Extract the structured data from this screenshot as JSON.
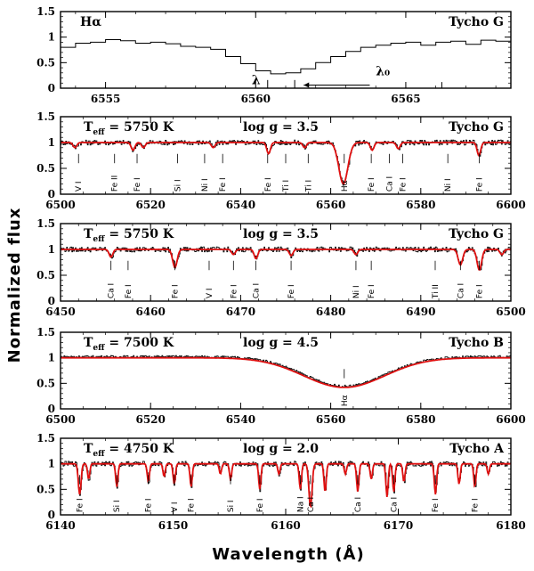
{
  "chart_data": {
    "type": "line",
    "ylabel": "Normalized flux",
    "xlabel": "Wavelength (Å)",
    "panels": [
      {
        "id": "p1",
        "xlim": [
          6553.5,
          6568.5
        ],
        "ylim": [
          0,
          1.5
        ],
        "xticks": [
          6555,
          6560,
          6565
        ],
        "yticks": [
          0,
          0.5,
          1,
          1.5
        ],
        "ytick_labels": [
          "0",
          "0.5",
          "1",
          "1.5"
        ],
        "texts": {
          "left": "Hα",
          "right": "Tycho G"
        },
        "step": true,
        "observed": {
          "x": [
            6553.5,
            6554.0,
            6554.5,
            6555.0,
            6555.5,
            6556.0,
            6556.5,
            6557.0,
            6557.5,
            6558.0,
            6558.5,
            6559.0,
            6559.5,
            6560.0,
            6560.5,
            6561.0,
            6561.5,
            6562.0,
            6562.5,
            6563.0,
            6563.5,
            6564.0,
            6564.5,
            6565.0,
            6565.5,
            6566.0,
            6566.5,
            6567.0,
            6567.5,
            6568.0,
            6568.5
          ],
          "y": [
            0.8,
            0.88,
            0.9,
            0.95,
            0.93,
            0.88,
            0.9,
            0.87,
            0.82,
            0.8,
            0.76,
            0.62,
            0.48,
            0.34,
            0.28,
            0.3,
            0.38,
            0.5,
            0.62,
            0.72,
            0.8,
            0.84,
            0.88,
            0.9,
            0.84,
            0.9,
            0.92,
            0.86,
            0.94,
            0.92,
            0.92
          ]
        },
        "annotations": {
          "lambda": "λ",
          "lambda0": "λ₀"
        }
      },
      {
        "id": "p2",
        "xlim": [
          6500,
          6600
        ],
        "ylim": [
          0,
          1.5
        ],
        "xticks": [
          6500,
          6520,
          6540,
          6560,
          6580,
          6600
        ],
        "yticks": [
          0,
          0.5,
          1,
          1.5
        ],
        "ytick_labels": [
          "0",
          "0.5",
          "1",
          "1.5"
        ],
        "texts": {
          "teff": "T",
          "teff_sub": "eff",
          "teff_val": " = 5750 K",
          "logg": "log g = 3.5",
          "right": "Tycho G"
        },
        "lines": [
          {
            "x": 6504,
            "label": "V I"
          },
          {
            "x": 6512,
            "label": "Fe II"
          },
          {
            "x": 6517,
            "label": "Fe I"
          },
          {
            "x": 6526,
            "label": "Si I"
          },
          {
            "x": 6532,
            "label": "Ni I"
          },
          {
            "x": 6536,
            "label": "Fe I"
          },
          {
            "x": 6546,
            "label": "Fe I"
          },
          {
            "x": 6550,
            "label": "Ti I"
          },
          {
            "x": 6555,
            "label": "Ti I"
          },
          {
            "x": 6563,
            "label": "Hα"
          },
          {
            "x": 6569,
            "label": "Fe I"
          },
          {
            "x": 6573,
            "label": "Ca I"
          },
          {
            "x": 6576,
            "label": "Fe I"
          },
          {
            "x": 6586,
            "label": "Ni I"
          },
          {
            "x": 6593,
            "label": "Fe I"
          }
        ],
        "continuum": 1.0,
        "model_lines": [
          {
            "x": 6503.2,
            "depth": 0.1,
            "width": 0.4
          },
          {
            "x": 6516.1,
            "depth": 0.15,
            "width": 0.4
          },
          {
            "x": 6518.4,
            "depth": 0.1,
            "width": 0.4
          },
          {
            "x": 6533.9,
            "depth": 0.1,
            "width": 0.4
          },
          {
            "x": 6546.2,
            "depth": 0.22,
            "width": 0.4
          },
          {
            "x": 6554.2,
            "depth": 0.1,
            "width": 0.4
          },
          {
            "x": 6562.8,
            "depth": 0.8,
            "width": 1.0
          },
          {
            "x": 6569.2,
            "depth": 0.15,
            "width": 0.4
          },
          {
            "x": 6575.0,
            "depth": 0.12,
            "width": 0.4
          },
          {
            "x": 6592.9,
            "depth": 0.25,
            "width": 0.4
          }
        ]
      },
      {
        "id": "p3",
        "xlim": [
          6450,
          6500
        ],
        "ylim": [
          0,
          1.5
        ],
        "xticks": [
          6450,
          6460,
          6470,
          6480,
          6490,
          6500
        ],
        "yticks": [
          0,
          0.5,
          1,
          1.5
        ],
        "ytick_labels": [
          "0",
          "0.5",
          "1",
          "1.5"
        ],
        "texts": {
          "teff": "T",
          "teff_sub": "eff",
          "teff_val": " = 5750 K",
          "logg": "log g = 3.5",
          "right": "Tycho G"
        },
        "lines": [
          {
            "x": 6455.6,
            "label": "Ca I"
          },
          {
            "x": 6457.5,
            "label": "Fe I"
          },
          {
            "x": 6462.7,
            "label": "Fe I"
          },
          {
            "x": 6466.5,
            "label": "V I"
          },
          {
            "x": 6469.2,
            "label": "Fe I"
          },
          {
            "x": 6471.7,
            "label": "Ca I"
          },
          {
            "x": 6475.6,
            "label": "Fe I"
          },
          {
            "x": 6482.8,
            "label": "Ni I"
          },
          {
            "x": 6484.5,
            "label": "Fe I"
          },
          {
            "x": 6491.6,
            "label": "Ti II"
          },
          {
            "x": 6494.4,
            "label": "Ca I"
          },
          {
            "x": 6496.5,
            "label": "Fe I"
          }
        ],
        "continuum": 1.0,
        "model_lines": [
          {
            "x": 6455.6,
            "depth": 0.15,
            "width": 0.2
          },
          {
            "x": 6462.7,
            "depth": 0.35,
            "width": 0.25
          },
          {
            "x": 6469.2,
            "depth": 0.1,
            "width": 0.2
          },
          {
            "x": 6471.7,
            "depth": 0.18,
            "width": 0.2
          },
          {
            "x": 6475.6,
            "depth": 0.12,
            "width": 0.2
          },
          {
            "x": 6482.8,
            "depth": 0.1,
            "width": 0.2
          },
          {
            "x": 6494.4,
            "depth": 0.3,
            "width": 0.25
          },
          {
            "x": 6496.5,
            "depth": 0.4,
            "width": 0.25
          },
          {
            "x": 6499.0,
            "depth": 0.1,
            "width": 0.2
          }
        ]
      },
      {
        "id": "p4",
        "xlim": [
          6500,
          6600
        ],
        "ylim": [
          0,
          1.5
        ],
        "xticks": [
          6500,
          6520,
          6540,
          6560,
          6580,
          6600
        ],
        "yticks": [
          0,
          0.5,
          1,
          1.5
        ],
        "ytick_labels": [
          "0",
          "0.5",
          "1",
          "1.5"
        ],
        "texts": {
          "teff": "T",
          "teff_sub": "eff",
          "teff_val": " = 7500 K",
          "logg": "log g = 4.5",
          "right": "Tycho B"
        },
        "lines": [
          {
            "x": 6563,
            "label": "Hα"
          }
        ],
        "continuum": 1.0,
        "model_lines": [
          {
            "x": 6563,
            "depth": 0.58,
            "width": 9
          }
        ]
      },
      {
        "id": "p5",
        "xlim": [
          6140,
          6180
        ],
        "ylim": [
          0,
          1.5
        ],
        "xticks": [
          6140,
          6150,
          6160,
          6170,
          6180
        ],
        "yticks": [
          0,
          0.5,
          1,
          1.5
        ],
        "ytick_labels": [
          "0",
          "0.5",
          "1",
          "1.5"
        ],
        "texts": {
          "teff": "T",
          "teff_sub": "eff",
          "teff_val": " = 4750 K",
          "logg": "log g = 2.0",
          "right": "Tycho A"
        },
        "lines": [
          {
            "x": 6141.7,
            "label": "Fe I"
          },
          {
            "x": 6145.0,
            "label": "Si I"
          },
          {
            "x": 6147.8,
            "label": "Fe I"
          },
          {
            "x": 6150.1,
            "label": "V I"
          },
          {
            "x": 6151.6,
            "label": "Fe I"
          },
          {
            "x": 6155.1,
            "label": "Si I"
          },
          {
            "x": 6157.7,
            "label": "Fe I"
          },
          {
            "x": 6161.3,
            "label": "Na I"
          },
          {
            "x": 6162.2,
            "label": "Ca I"
          },
          {
            "x": 6166.4,
            "label": "Ca I"
          },
          {
            "x": 6169.6,
            "label": "Ca I"
          },
          {
            "x": 6173.3,
            "label": "Fe I"
          },
          {
            "x": 6176.8,
            "label": "Fe I"
          }
        ],
        "continuum": 1.0,
        "model_lines": [
          {
            "x": 6141.7,
            "depth": 0.6,
            "width": 0.12
          },
          {
            "x": 6142.5,
            "depth": 0.3,
            "width": 0.1
          },
          {
            "x": 6145.0,
            "depth": 0.45,
            "width": 0.1
          },
          {
            "x": 6147.8,
            "depth": 0.35,
            "width": 0.1
          },
          {
            "x": 6149.2,
            "depth": 0.25,
            "width": 0.1
          },
          {
            "x": 6150.1,
            "depth": 0.4,
            "width": 0.1
          },
          {
            "x": 6151.6,
            "depth": 0.45,
            "width": 0.1
          },
          {
            "x": 6154.2,
            "depth": 0.2,
            "width": 0.1
          },
          {
            "x": 6155.1,
            "depth": 0.3,
            "width": 0.1
          },
          {
            "x": 6157.7,
            "depth": 0.5,
            "width": 0.1
          },
          {
            "x": 6159.4,
            "depth": 0.2,
            "width": 0.1
          },
          {
            "x": 6161.3,
            "depth": 0.5,
            "width": 0.1
          },
          {
            "x": 6162.2,
            "depth": 0.85,
            "width": 0.14
          },
          {
            "x": 6163.5,
            "depth": 0.55,
            "width": 0.1
          },
          {
            "x": 6165.3,
            "depth": 0.2,
            "width": 0.1
          },
          {
            "x": 6166.4,
            "depth": 0.55,
            "width": 0.1
          },
          {
            "x": 6167.6,
            "depth": 0.3,
            "width": 0.1
          },
          {
            "x": 6169.0,
            "depth": 0.65,
            "width": 0.1
          },
          {
            "x": 6169.6,
            "depth": 0.55,
            "width": 0.1
          },
          {
            "x": 6170.5,
            "depth": 0.35,
            "width": 0.1
          },
          {
            "x": 6173.3,
            "depth": 0.6,
            "width": 0.1
          },
          {
            "x": 6175.4,
            "depth": 0.4,
            "width": 0.1
          },
          {
            "x": 6176.8,
            "depth": 0.45,
            "width": 0.1
          },
          {
            "x": 6178.0,
            "depth": 0.2,
            "width": 0.1
          }
        ]
      }
    ],
    "colors": {
      "observed": "#000000",
      "model": "#e01010"
    }
  }
}
